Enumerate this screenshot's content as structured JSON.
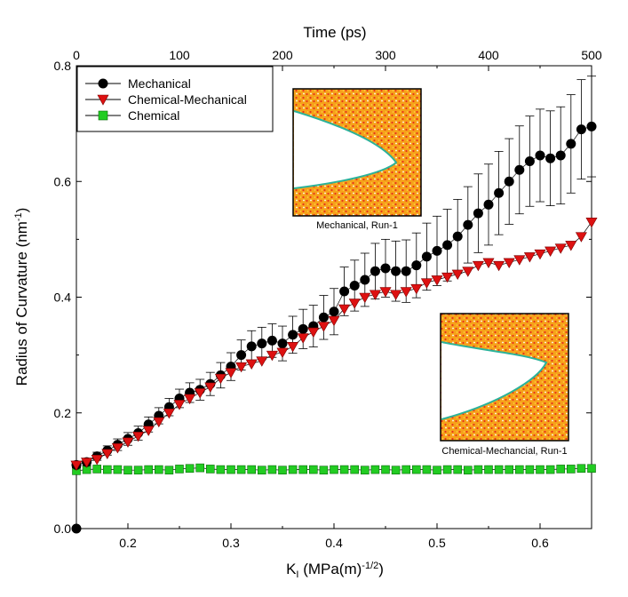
{
  "chart_data": {
    "type": "scatter",
    "title": "",
    "xlabel": "K",
    "xlabel_sub": "I",
    "xlabel_rest": " (MPa(m)",
    "xlabel_exp": "-1/2",
    "xlabel_close": ")",
    "ylabel": "Radius of Curvature (nm",
    "ylabel_exp": "-1",
    "ylabel_close": ")",
    "top_xlabel": "Time (ps)",
    "xlim": [
      0.15,
      0.65
    ],
    "ylim": [
      0.0,
      0.8
    ],
    "top_xlim": [
      0,
      500
    ],
    "x_ticks": [
      "0.2",
      "0.3",
      "0.4",
      "0.5",
      "0.6"
    ],
    "y_ticks": [
      "0.0",
      "0.2",
      "0.4",
      "0.6",
      "0.8"
    ],
    "top_ticks": [
      "0",
      "100",
      "200",
      "300",
      "400",
      "500"
    ],
    "grid": false,
    "legend_position": "top-left",
    "series": [
      {
        "name": "Mechanical",
        "color": "#000000",
        "marker": "circle",
        "error_bars": true,
        "x": [
          0.15,
          0.16,
          0.17,
          0.18,
          0.19,
          0.2,
          0.21,
          0.22,
          0.23,
          0.24,
          0.25,
          0.26,
          0.27,
          0.28,
          0.29,
          0.3,
          0.31,
          0.32,
          0.33,
          0.34,
          0.35,
          0.36,
          0.37,
          0.38,
          0.39,
          0.4,
          0.41,
          0.42,
          0.43,
          0.44,
          0.45,
          0.46,
          0.47,
          0.48,
          0.49,
          0.5,
          0.51,
          0.52,
          0.53,
          0.54,
          0.55,
          0.56,
          0.57,
          0.58,
          0.59,
          0.6,
          0.61,
          0.62,
          0.63,
          0.64,
          0.65
        ],
        "y": [
          0.11,
          0.115,
          0.125,
          0.135,
          0.145,
          0.155,
          0.165,
          0.18,
          0.195,
          0.21,
          0.225,
          0.235,
          0.24,
          0.25,
          0.265,
          0.28,
          0.3,
          0.315,
          0.32,
          0.325,
          0.32,
          0.335,
          0.345,
          0.35,
          0.365,
          0.375,
          0.41,
          0.42,
          0.43,
          0.445,
          0.45,
          0.445,
          0.445,
          0.455,
          0.47,
          0.48,
          0.49,
          0.505,
          0.525,
          0.545,
          0.56,
          0.58,
          0.6,
          0.62,
          0.635,
          0.645,
          0.64,
          0.645,
          0.665,
          0.69,
          0.695
        ],
        "err": [
          0.005,
          0.006,
          0.007,
          0.008,
          0.01,
          0.011,
          0.012,
          0.013,
          0.014,
          0.015,
          0.016,
          0.017,
          0.018,
          0.02,
          0.022,
          0.024,
          0.026,
          0.027,
          0.028,
          0.029,
          0.03,
          0.032,
          0.034,
          0.036,
          0.038,
          0.04,
          0.042,
          0.044,
          0.046,
          0.048,
          0.05,
          0.052,
          0.054,
          0.056,
          0.058,
          0.06,
          0.062,
          0.064,
          0.066,
          0.068,
          0.07,
          0.072,
          0.074,
          0.076,
          0.078,
          0.08,
          0.082,
          0.084,
          0.085,
          0.086,
          0.087
        ]
      },
      {
        "name": "Chemical-Mechanical",
        "color": "#dd1111",
        "marker": "triangle-down",
        "error_bars": false,
        "x": [
          0.15,
          0.16,
          0.17,
          0.18,
          0.19,
          0.2,
          0.21,
          0.22,
          0.23,
          0.24,
          0.25,
          0.26,
          0.27,
          0.28,
          0.29,
          0.3,
          0.31,
          0.32,
          0.33,
          0.34,
          0.35,
          0.36,
          0.37,
          0.38,
          0.39,
          0.4,
          0.41,
          0.42,
          0.43,
          0.44,
          0.45,
          0.46,
          0.47,
          0.48,
          0.49,
          0.5,
          0.51,
          0.52,
          0.53,
          0.54,
          0.55,
          0.56,
          0.57,
          0.58,
          0.59,
          0.6,
          0.61,
          0.62,
          0.63,
          0.64,
          0.65
        ],
        "y": [
          0.11,
          0.115,
          0.12,
          0.13,
          0.14,
          0.15,
          0.16,
          0.17,
          0.185,
          0.2,
          0.215,
          0.225,
          0.235,
          0.245,
          0.26,
          0.27,
          0.28,
          0.285,
          0.29,
          0.3,
          0.305,
          0.315,
          0.33,
          0.34,
          0.35,
          0.36,
          0.38,
          0.39,
          0.4,
          0.405,
          0.41,
          0.405,
          0.41,
          0.415,
          0.425,
          0.43,
          0.435,
          0.44,
          0.445,
          0.455,
          0.46,
          0.455,
          0.46,
          0.465,
          0.47,
          0.475,
          0.48,
          0.485,
          0.49,
          0.505,
          0.53
        ]
      },
      {
        "name": "Chemical",
        "color": "#22cc22",
        "marker": "square",
        "error_bars": false,
        "x": [
          0.15,
          0.16,
          0.17,
          0.18,
          0.19,
          0.2,
          0.21,
          0.22,
          0.23,
          0.24,
          0.25,
          0.26,
          0.27,
          0.28,
          0.29,
          0.3,
          0.31,
          0.32,
          0.33,
          0.34,
          0.35,
          0.36,
          0.37,
          0.38,
          0.39,
          0.4,
          0.41,
          0.42,
          0.43,
          0.44,
          0.45,
          0.46,
          0.47,
          0.48,
          0.49,
          0.5,
          0.51,
          0.52,
          0.53,
          0.54,
          0.55,
          0.56,
          0.57,
          0.58,
          0.59,
          0.6,
          0.61,
          0.62,
          0.63,
          0.64,
          0.65
        ],
        "y": [
          0.1,
          0.102,
          0.103,
          0.102,
          0.102,
          0.101,
          0.101,
          0.102,
          0.102,
          0.101,
          0.103,
          0.104,
          0.105,
          0.103,
          0.102,
          0.102,
          0.102,
          0.102,
          0.101,
          0.102,
          0.101,
          0.102,
          0.102,
          0.102,
          0.101,
          0.102,
          0.102,
          0.102,
          0.101,
          0.102,
          0.102,
          0.101,
          0.102,
          0.102,
          0.102,
          0.101,
          0.102,
          0.102,
          0.101,
          0.102,
          0.102,
          0.102,
          0.102,
          0.102,
          0.102,
          0.102,
          0.102,
          0.103,
          0.103,
          0.104,
          0.104
        ]
      }
    ],
    "extra_point": {
      "x": 0.15,
      "y": 0.0,
      "color": "#000000"
    },
    "insets": [
      {
        "caption": "Mechanical, Run-1"
      },
      {
        "caption": "Chemical-Mechancial, Run-1"
      }
    ]
  }
}
